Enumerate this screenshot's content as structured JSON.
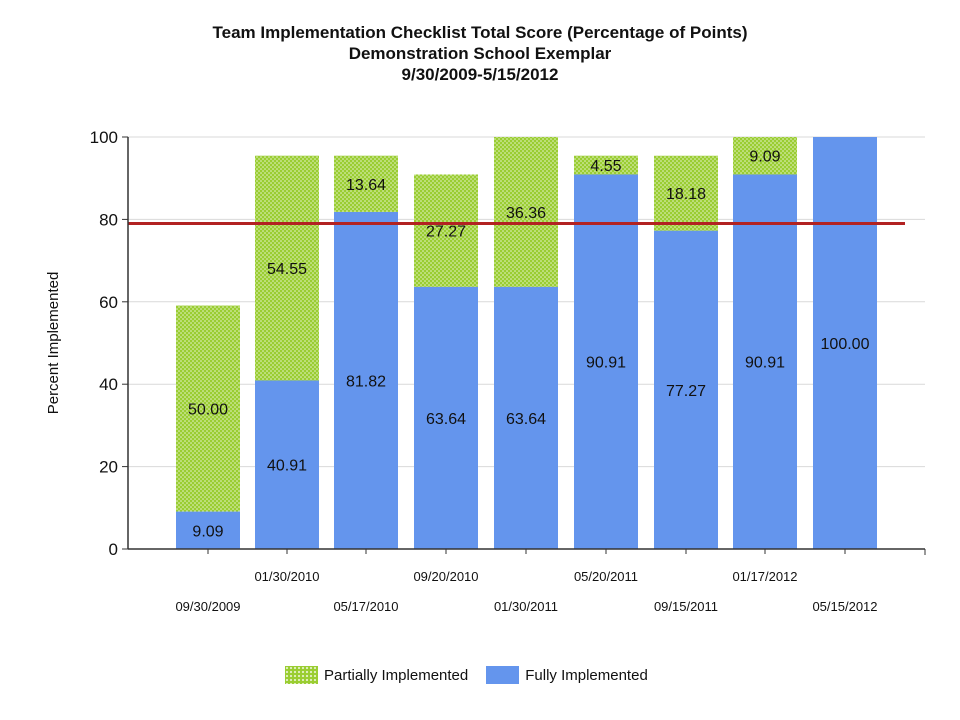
{
  "header": {
    "line1": "Team Implementation Checklist Total Score (Percentage of Points)",
    "line2": "Demonstration School Exemplar",
    "line3": "9/30/2009-5/15/2012"
  },
  "chart_data": {
    "type": "bar",
    "stacked": true,
    "title": "Team Implementation Checklist Total Score (Percentage of Points)",
    "subtitle": "Demonstration School Exemplar 9/30/2009-5/15/2012",
    "ylabel": "Percent Implemented",
    "xlabel": "",
    "ylim": [
      0,
      100
    ],
    "yticks": [
      0,
      20,
      40,
      60,
      80,
      100
    ],
    "categories": [
      "09/30/2009",
      "01/30/2010",
      "05/17/2010",
      "09/20/2010",
      "01/30/2011",
      "05/20/2011",
      "09/15/2011",
      "01/17/2012",
      "05/15/2012"
    ],
    "series": [
      {
        "name": "Fully Implemented",
        "color": "#6495ed",
        "values": [
          9.09,
          40.91,
          81.82,
          63.64,
          63.64,
          90.91,
          77.27,
          90.91,
          100.0
        ]
      },
      {
        "name": "Partially Implemented",
        "color": "#9acd32",
        "values": [
          50.0,
          54.55,
          13.64,
          27.27,
          36.36,
          4.55,
          18.18,
          9.09,
          null
        ]
      }
    ],
    "data_labels": {
      "Fully Implemented": [
        "9.09",
        "40.91",
        "81.82",
        "63.64",
        "63.64",
        "90.91",
        "77.27",
        "90.91",
        "100.00"
      ],
      "Partially Implemented": [
        "50.00",
        "54.55",
        "13.64",
        "27.27",
        "36.36",
        "4.55",
        "18.18",
        "9.09",
        ""
      ]
    },
    "reference_line": {
      "value": 79,
      "color": "#b22222"
    },
    "grid": true,
    "legend_position": "bottom"
  },
  "legend": {
    "partial_label": "Partially Implemented",
    "full_label": "Fully Implemented"
  }
}
